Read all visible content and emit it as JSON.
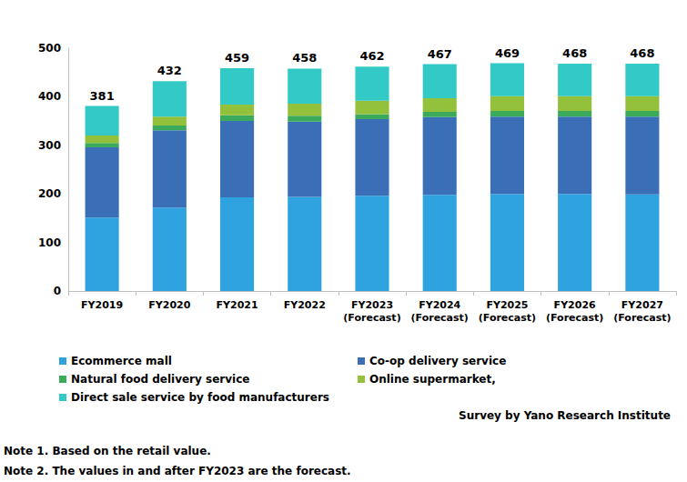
{
  "chart_data": {
    "type": "bar",
    "stacked": true,
    "grid": false,
    "categories": [
      "FY2019",
      "FY2020",
      "FY2021",
      "FY2022",
      "FY2023\n(Forecast)",
      "FY2024\n(Forecast)",
      "FY2025\n(Forecast)",
      "FY2026\n(Forecast)",
      "FY2027\n(Forecast)"
    ],
    "series": [
      {
        "name": "Ecommerce mall",
        "color": "#2ea3e0",
        "values": [
          151,
          172,
          193,
          194,
          196,
          198,
          200,
          200,
          199
        ]
      },
      {
        "name": "Co-op delivery service",
        "color": "#3a6fb8",
        "values": [
          145,
          159,
          157,
          155,
          158,
          160,
          159,
          159,
          160
        ]
      },
      {
        "name": "Natural food delivery service",
        "color": "#3baa5a",
        "values": [
          9,
          10,
          12,
          12,
          10,
          11,
          12,
          12,
          12
        ]
      },
      {
        "name": "Online supermarket,",
        "color": "#93c13c",
        "values": [
          15,
          18,
          22,
          25,
          28,
          28,
          30,
          30,
          30
        ]
      },
      {
        "name": "Direct sale service by food manufacturers",
        "color": "#33c9c6",
        "values": [
          61,
          73,
          75,
          72,
          70,
          70,
          68,
          67,
          67
        ]
      }
    ],
    "totals": [
      381,
      432,
      459,
      458,
      462,
      467,
      469,
      468,
      468
    ],
    "ylim": [
      0,
      500
    ],
    "yticks": [
      0,
      100,
      200,
      300,
      400,
      500
    ],
    "source": "Survey by Yano Research Institute",
    "notes": [
      "Note 1. Based on the retail value.",
      "Note 2. The values in and after FY2023 are the forecast."
    ]
  }
}
